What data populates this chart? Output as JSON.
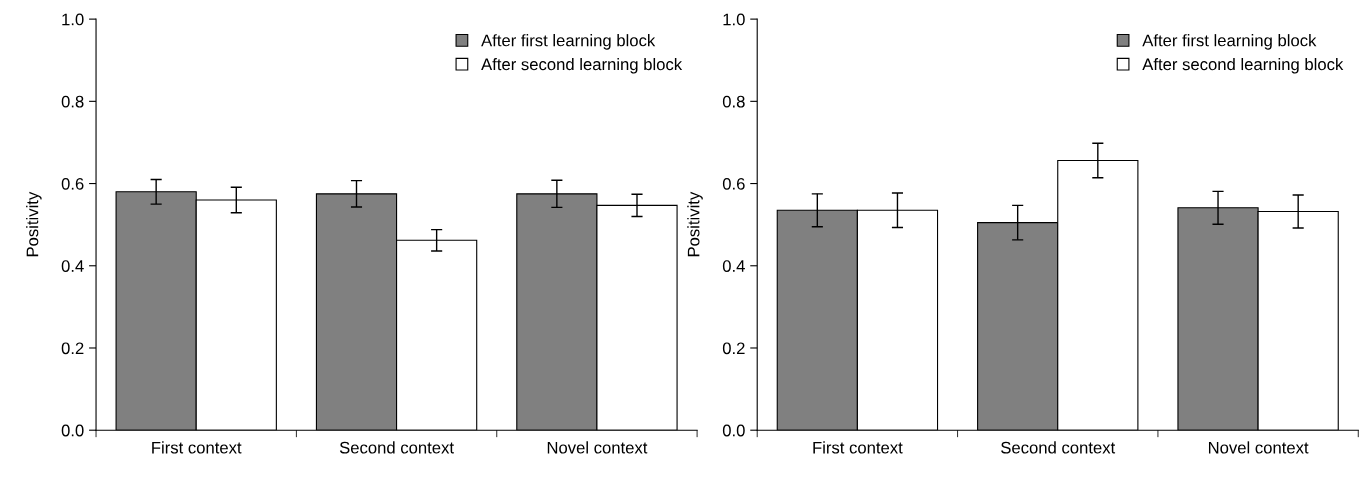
{
  "chart_data": [
    {
      "type": "bar",
      "ylabel": "Positivity",
      "categories": [
        "First context",
        "Second context",
        "Novel context"
      ],
      "ylim": [
        0,
        1.0
      ],
      "yticks": [
        {
          "value": 0,
          "label": "0.0"
        },
        {
          "value": 0.2,
          "label": "0.2"
        },
        {
          "value": 0.4,
          "label": "0.4"
        },
        {
          "value": 0.6,
          "label": "0.6"
        },
        {
          "value": 0.8,
          "label": "0.8"
        },
        {
          "value": 1.0,
          "label": "1.0"
        }
      ],
      "grid": false,
      "legend": "top right",
      "series": [
        {
          "name": "After first learning block",
          "color": "#808080",
          "values": [
            0.58,
            0.575,
            0.575
          ],
          "errors": [
            0.03,
            0.032,
            0.033
          ]
        },
        {
          "name": "After second learning block",
          "color": "#ffffff",
          "values": [
            0.56,
            0.462,
            0.547
          ],
          "errors": [
            0.031,
            0.026,
            0.027
          ]
        }
      ]
    },
    {
      "type": "bar",
      "ylabel": "Positivity",
      "categories": [
        "First context",
        "Second context",
        "Novel context"
      ],
      "ylim": [
        0,
        1.0
      ],
      "yticks": [
        {
          "value": 0,
          "label": "0.0"
        },
        {
          "value": 0.2,
          "label": "0.2"
        },
        {
          "value": 0.4,
          "label": "0.4"
        },
        {
          "value": 0.6,
          "label": "0.6"
        },
        {
          "value": 0.8,
          "label": "0.8"
        },
        {
          "value": 1.0,
          "label": "1.0"
        }
      ],
      "grid": false,
      "legend": "top right",
      "series": [
        {
          "name": "After first learning block",
          "color": "#808080",
          "values": [
            0.535,
            0.505,
            0.541
          ],
          "errors": [
            0.04,
            0.042,
            0.04
          ]
        },
        {
          "name": "After second learning block",
          "color": "#ffffff",
          "values": [
            0.535,
            0.656,
            0.532
          ],
          "errors": [
            0.042,
            0.042,
            0.04
          ]
        }
      ]
    }
  ]
}
